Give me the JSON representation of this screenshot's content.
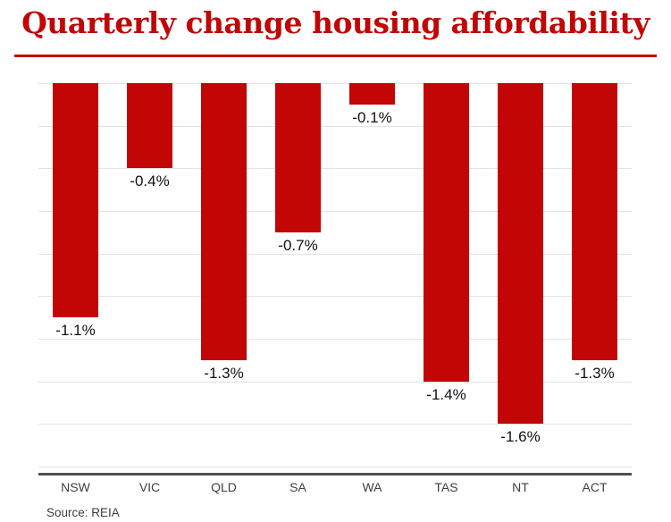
{
  "header": {
    "title": "Quarterly change housing affordability",
    "title_color": "#c20606",
    "rule_color": "#c20606"
  },
  "chart_data": {
    "type": "bar",
    "title": "Quarterly change housing affordability",
    "orientation": "vertical",
    "categories": [
      "NSW",
      "VIC",
      "QLD",
      "SA",
      "WA",
      "TAS",
      "NT",
      "ACT"
    ],
    "values": [
      -1.1,
      -0.4,
      -1.3,
      -0.7,
      -0.1,
      -1.4,
      -1.6,
      -1.3
    ],
    "value_labels": [
      "-1.1%",
      "-0.4%",
      "-1.3%",
      "-0.7%",
      "-0.1%",
      "-1.4%",
      "-1.6%",
      "-1.3%"
    ],
    "unit": "%",
    "bar_color": "#c20606",
    "gridline_color": "#e3e3e3",
    "axis_line_color": "#4f4f4f",
    "value_label_color": "#111111",
    "category_label_color": "#3e3e3e",
    "xlabel": "",
    "ylabel": "",
    "ylim": [
      -1.83,
      0
    ],
    "gridline_step": 0.2,
    "grid": true,
    "legend": "none"
  },
  "footer": {
    "source": "Source: REIA"
  }
}
